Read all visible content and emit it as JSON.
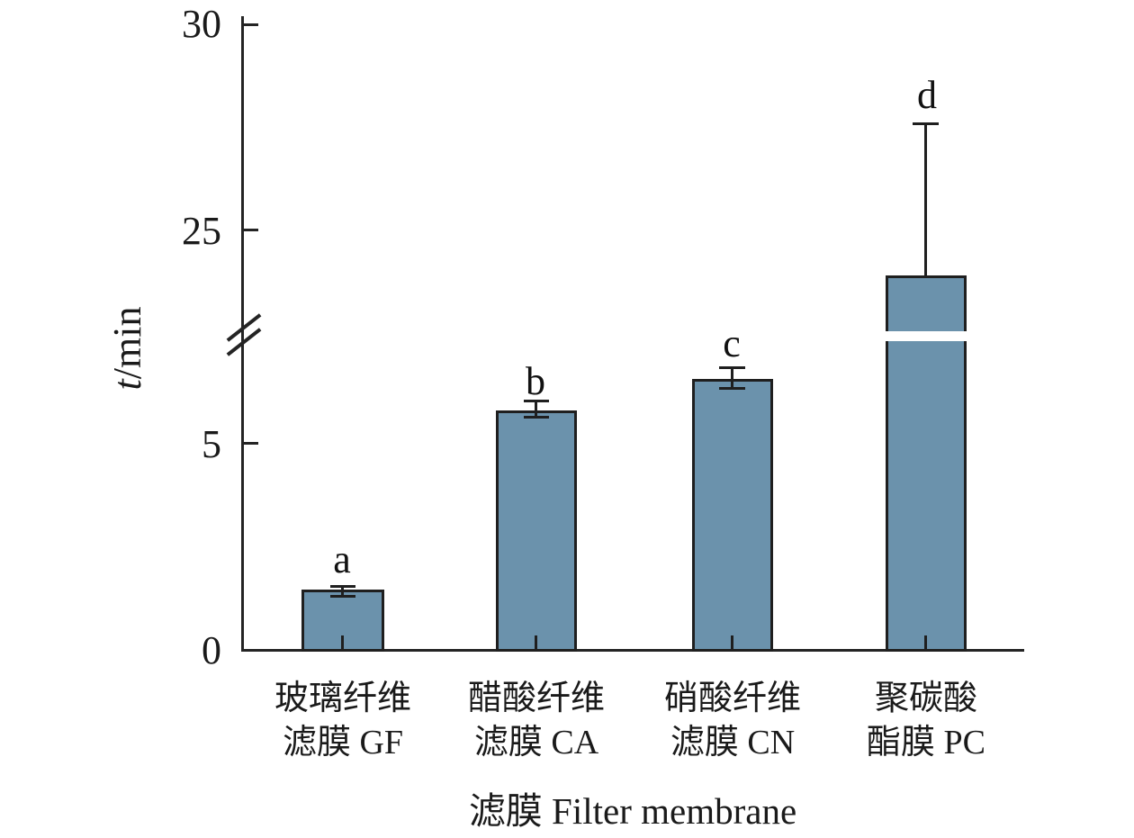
{
  "display": {
    "yticks": [
      "30",
      "25",
      "5",
      "0"
    ],
    "ylabel_var": "t",
    "ylabel_unit": "/min",
    "xlabel": "滤膜 Filter membrane",
    "cat_line1": [
      "玻璃纤维",
      "醋酸纤维",
      "硝酸纤维",
      "聚碳酸"
    ],
    "cat_line2": [
      "滤膜 GF",
      "滤膜 CA",
      "滤膜 CN",
      "酯膜 PC"
    ],
    "sig_letters": [
      "a",
      "b",
      "c",
      "d"
    ]
  },
  "chart_data": {
    "type": "bar",
    "title": "",
    "xlabel": "滤膜 Filter membrane",
    "ylabel": "t/min",
    "categories": [
      "玻璃纤维滤膜 GF",
      "醋酸纤维滤膜 CA",
      "硝酸纤维滤膜 CN",
      "聚碳酸酯膜 PC"
    ],
    "series": [
      {
        "name": "t/min",
        "values": [
          1.4,
          5.8,
          6.5,
          23.9
        ],
        "errors": [
          0.1,
          0.2,
          0.25,
          3.7
        ],
        "error_note": "error bar for PC (d) drawn upward only",
        "significance_letters": [
          "a",
          "b",
          "c",
          "d"
        ]
      }
    ],
    "ylim": [
      0,
      30
    ],
    "yticks": [
      0,
      5,
      25,
      30
    ],
    "axis_break": {
      "from": 7.5,
      "to": 22.5,
      "marker": "double slash on y-axis; white gap band across PC bar"
    },
    "grid": false,
    "legend": false,
    "bar_color": "#6b92ac",
    "bar_outline_color": "#1f1f1f",
    "axis_color": "#242424"
  }
}
